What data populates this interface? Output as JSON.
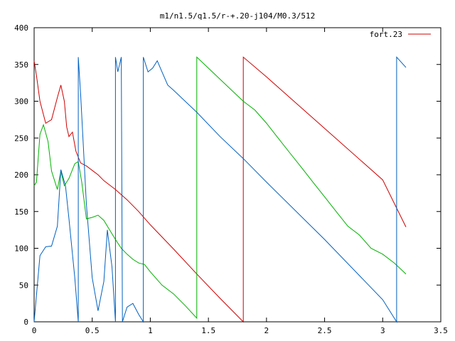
{
  "chart_data": {
    "type": "line",
    "title": "m1/n1.5/q1.5/r-+.20-j104/M0.3/512",
    "xlabel": "",
    "ylabel": "",
    "xlim": [
      0,
      3.5
    ],
    "ylim": [
      0,
      400
    ],
    "x_ticks": [
      0,
      0.5,
      1,
      1.5,
      2,
      2.5,
      3,
      3.5
    ],
    "x_tick_labels": [
      "0",
      "0.5",
      "1",
      "1.5",
      "2",
      "2.5",
      "3",
      "3.5"
    ],
    "y_ticks": [
      0,
      50,
      100,
      150,
      200,
      250,
      300,
      350,
      400
    ],
    "y_tick_labels": [
      "0",
      "50",
      "100",
      "150",
      "200",
      "250",
      "300",
      "350",
      "400"
    ],
    "grid": false,
    "legend_position": "top-right",
    "legend": [
      "fort.23"
    ],
    "series": [
      {
        "name": "fort.23",
        "color": "#cc0000",
        "points": [
          [
            0,
            355
          ],
          [
            0.02,
            335
          ],
          [
            0.05,
            300
          ],
          [
            0.1,
            270
          ],
          [
            0.15,
            275
          ],
          [
            0.2,
            305
          ],
          [
            0.23,
            322
          ],
          [
            0.26,
            300
          ],
          [
            0.28,
            265
          ],
          [
            0.3,
            252
          ],
          [
            0.33,
            258
          ],
          [
            0.36,
            232
          ],
          [
            0.4,
            216
          ],
          [
            0.45,
            212
          ],
          [
            0.5,
            206
          ],
          [
            0.55,
            200
          ],
          [
            0.6,
            192
          ],
          [
            0.7,
            180
          ],
          [
            0.8,
            166
          ],
          [
            0.9,
            150
          ],
          [
            1.0,
            132
          ],
          [
            1.2,
            99
          ],
          [
            1.4,
            65
          ],
          [
            1.6,
            32
          ],
          [
            1.8,
            0
          ],
          [
            1.8,
            360
          ],
          [
            2.0,
            333
          ],
          [
            2.5,
            263
          ],
          [
            3.0,
            193
          ],
          [
            3.2,
            129
          ]
        ]
      },
      {
        "color": "#00b000",
        "points": [
          [
            0,
            185
          ],
          [
            0.02,
            190
          ],
          [
            0.05,
            255
          ],
          [
            0.08,
            268
          ],
          [
            0.12,
            245
          ],
          [
            0.15,
            205
          ],
          [
            0.2,
            180
          ],
          [
            0.23,
            205
          ],
          [
            0.26,
            185
          ],
          [
            0.3,
            195
          ],
          [
            0.35,
            215
          ],
          [
            0.38,
            218
          ],
          [
            0.41,
            190
          ],
          [
            0.45,
            140
          ],
          [
            0.5,
            142
          ],
          [
            0.55,
            145
          ],
          [
            0.6,
            138
          ],
          [
            0.65,
            125
          ],
          [
            0.7,
            112
          ],
          [
            0.75,
            100
          ],
          [
            0.8,
            92
          ],
          [
            0.85,
            85
          ],
          [
            0.9,
            80
          ],
          [
            0.95,
            78
          ],
          [
            1.0,
            68
          ],
          [
            1.1,
            50
          ],
          [
            1.2,
            38
          ],
          [
            1.3,
            22
          ],
          [
            1.4,
            5
          ],
          [
            1.4,
            360
          ],
          [
            1.5,
            345
          ],
          [
            1.6,
            330
          ],
          [
            1.7,
            315
          ],
          [
            1.8,
            300
          ],
          [
            1.9,
            288
          ],
          [
            2.0,
            270
          ],
          [
            2.1,
            250
          ],
          [
            2.2,
            230
          ],
          [
            2.3,
            210
          ],
          [
            2.4,
            190
          ],
          [
            2.5,
            170
          ],
          [
            2.6,
            150
          ],
          [
            2.7,
            130
          ],
          [
            2.8,
            118
          ],
          [
            2.9,
            100
          ],
          [
            3.0,
            92
          ],
          [
            3.1,
            80
          ],
          [
            3.2,
            65
          ]
        ]
      },
      {
        "color": "#0060c0",
        "points": [
          [
            0,
            0
          ],
          [
            0.05,
            90
          ],
          [
            0.1,
            102
          ],
          [
            0.15,
            103
          ],
          [
            0.2,
            130
          ],
          [
            0.23,
            207
          ],
          [
            0.27,
            185
          ],
          [
            0.3,
            140
          ],
          [
            0.35,
            60
          ],
          [
            0.38,
            0
          ],
          [
            0.38,
            360
          ],
          [
            0.4,
            310
          ],
          [
            0.45,
            160
          ],
          [
            0.5,
            60
          ],
          [
            0.55,
            15
          ],
          [
            0.6,
            55
          ],
          [
            0.63,
            125
          ],
          [
            0.67,
            75
          ],
          [
            0.7,
            0
          ],
          [
            0.7,
            360
          ],
          [
            0.72,
            340
          ],
          [
            0.75,
            360
          ],
          [
            0.76,
            0
          ],
          [
            0.8,
            20
          ],
          [
            0.85,
            25
          ],
          [
            0.9,
            10
          ],
          [
            0.94,
            0
          ],
          [
            0.94,
            360
          ],
          [
            0.98,
            340
          ],
          [
            1.02,
            345
          ],
          [
            1.06,
            355
          ],
          [
            1.1,
            340
          ],
          [
            1.15,
            322
          ],
          [
            1.2,
            315
          ],
          [
            1.4,
            285
          ],
          [
            1.6,
            252
          ],
          [
            1.8,
            222
          ],
          [
            2.0,
            190
          ],
          [
            2.5,
            112
          ],
          [
            3.0,
            30
          ],
          [
            3.12,
            0
          ],
          [
            3.12,
            360
          ],
          [
            3.2,
            346
          ]
        ]
      }
    ]
  }
}
